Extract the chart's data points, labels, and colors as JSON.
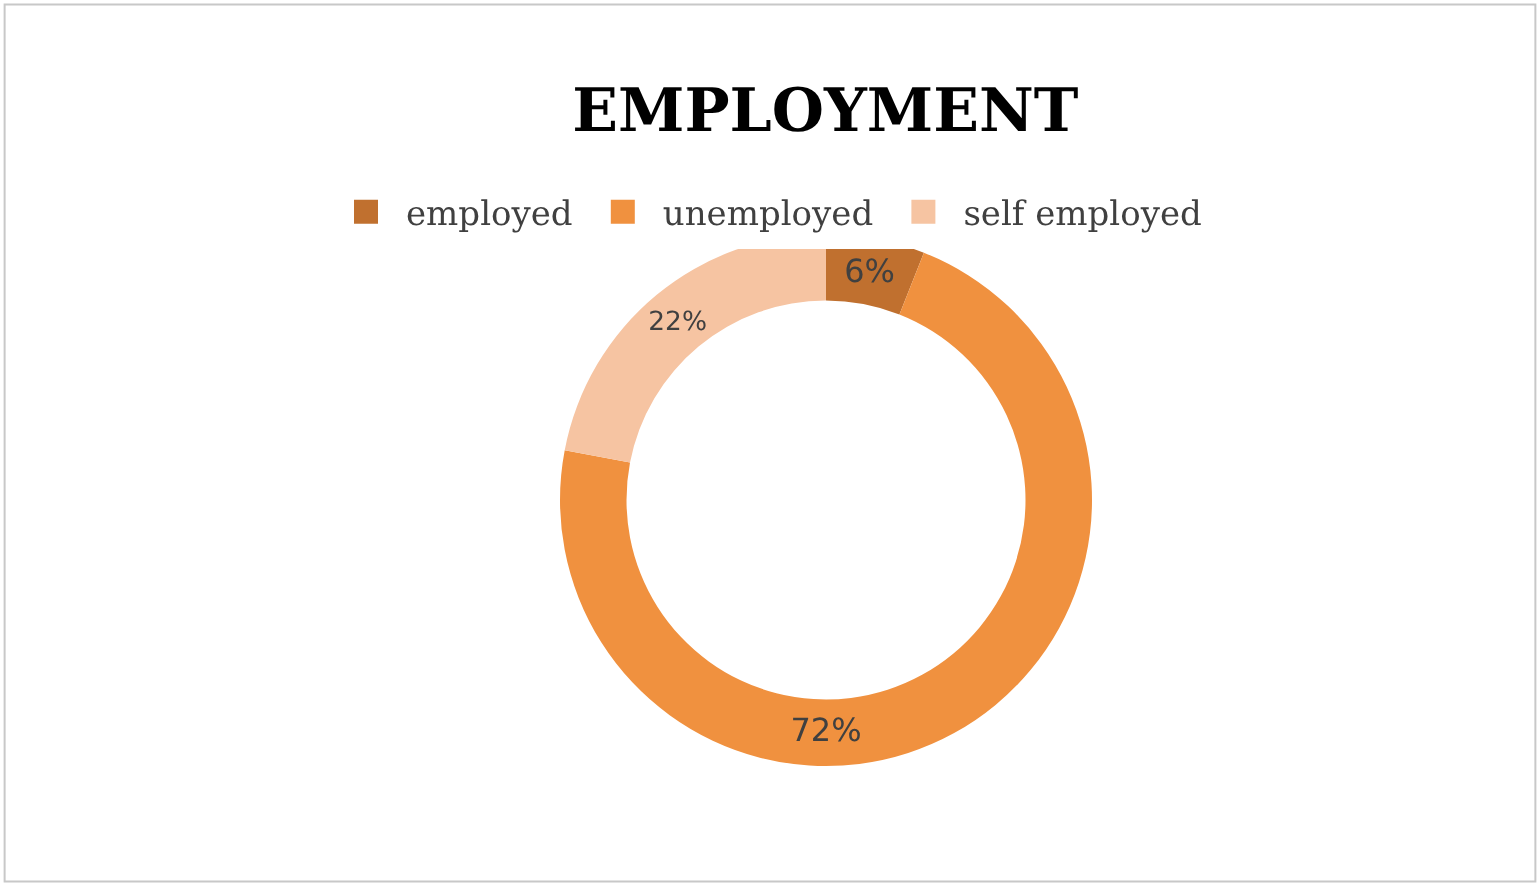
{
  "chart_data": {
    "type": "donut",
    "title": "EMPLOYMENT",
    "categories": [
      "employed",
      "unemployed",
      "self employed"
    ],
    "values": [
      6,
      72,
      22
    ],
    "colors": [
      "#c0702f",
      "#f0913f",
      "#f6c4a2"
    ],
    "value_labels": [
      "6%",
      "72%",
      "22%"
    ],
    "legend": "top"
  }
}
